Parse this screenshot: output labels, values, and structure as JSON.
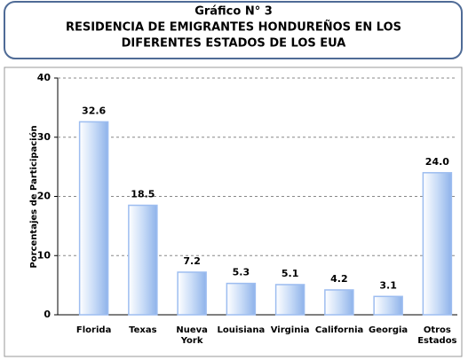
{
  "chart_data": {
    "type": "bar",
    "title_lines": [
      "Gráfico N° 3",
      "RESIDENCIA DE EMIGRANTES HONDUREÑOS EN LOS",
      "DIFERENTES ESTADOS DE LOS EUA"
    ],
    "y_label": "Porcentajes de Participación",
    "categories": [
      "Florida",
      "Texas",
      "Nueva York",
      "Louisiana",
      "Virginia",
      "California",
      "Georgia",
      "Otros Estados"
    ],
    "values": [
      32.6,
      18.5,
      7.2,
      5.3,
      5.1,
      4.2,
      3.1,
      24.0
    ],
    "value_labels": [
      "32.6",
      "18.5",
      "7.2",
      "5.3",
      "5.1",
      "4.2",
      "3.1",
      "24.0"
    ],
    "color": "#9dbdf0",
    "ylim": [
      0,
      40
    ],
    "yticks": [
      0,
      10,
      20,
      30,
      40
    ],
    "grid": true
  }
}
